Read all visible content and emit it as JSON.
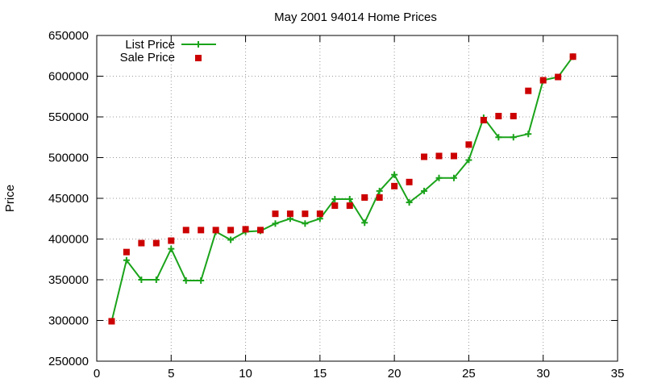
{
  "chart_data": {
    "type": "line",
    "title": "May 2001 94014 Home Prices",
    "xlabel": "",
    "ylabel": "Price",
    "xlim": [
      0,
      35
    ],
    "ylim": [
      250000,
      650000
    ],
    "xticks": [
      0,
      5,
      10,
      15,
      20,
      25,
      30,
      35
    ],
    "yticks": [
      250000,
      300000,
      350000,
      400000,
      450000,
      500000,
      550000,
      600000,
      650000
    ],
    "grid": true,
    "legend_position": "top-left",
    "series": [
      {
        "name": "List Price",
        "style": "line-with-plus-markers",
        "color": "#1aa31a",
        "points": [
          [
            1,
            299000
          ],
          [
            2,
            374000
          ],
          [
            3,
            350000
          ],
          [
            4,
            350000
          ],
          [
            5,
            388000
          ],
          [
            6,
            349000
          ],
          [
            7,
            349000
          ],
          [
            8,
            409000
          ],
          [
            9,
            399000
          ],
          [
            10,
            409000
          ],
          [
            11,
            410000
          ],
          [
            12,
            419000
          ],
          [
            13,
            425000
          ],
          [
            14,
            419000
          ],
          [
            15,
            425000
          ],
          [
            16,
            449000
          ],
          [
            17,
            449000
          ],
          [
            18,
            420000
          ],
          [
            19,
            459000
          ],
          [
            20,
            479000
          ],
          [
            21,
            445000
          ],
          [
            22,
            459000
          ],
          [
            23,
            475000
          ],
          [
            24,
            475000
          ],
          [
            25,
            497000
          ],
          [
            26,
            549000
          ],
          [
            27,
            525000
          ],
          [
            28,
            525000
          ],
          [
            29,
            529000
          ],
          [
            30,
            595000
          ],
          [
            31,
            599000
          ],
          [
            32,
            624000
          ]
        ]
      },
      {
        "name": "Sale Price",
        "style": "square-markers",
        "color": "#cc0000",
        "points": [
          [
            1,
            299000
          ],
          [
            2,
            384000
          ],
          [
            3,
            395000
          ],
          [
            4,
            395000
          ],
          [
            5,
            398000
          ],
          [
            6,
            411000
          ],
          [
            7,
            411000
          ],
          [
            8,
            411000
          ],
          [
            9,
            411000
          ],
          [
            10,
            412000
          ],
          [
            11,
            411000
          ],
          [
            12,
            431000
          ],
          [
            13,
            431000
          ],
          [
            14,
            431000
          ],
          [
            15,
            431000
          ],
          [
            16,
            441000
          ],
          [
            17,
            441000
          ],
          [
            18,
            451000
          ],
          [
            19,
            451000
          ],
          [
            20,
            465000
          ],
          [
            21,
            470000
          ],
          [
            22,
            501000
          ],
          [
            23,
            502000
          ],
          [
            24,
            502000
          ],
          [
            25,
            516000
          ],
          [
            26,
            546000
          ],
          [
            27,
            551000
          ],
          [
            28,
            551000
          ],
          [
            29,
            582000
          ],
          [
            30,
            595000
          ],
          [
            31,
            599000
          ],
          [
            32,
            624000
          ]
        ]
      }
    ]
  }
}
